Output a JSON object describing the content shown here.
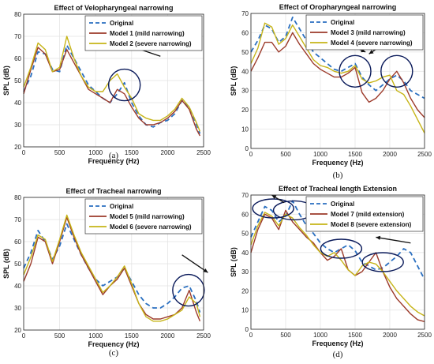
{
  "colors": {
    "original": "#2a6fc0",
    "moderate": "#9c3a2a",
    "severe": "#c6b417",
    "annotation": "#0a1a5a",
    "grid": "#e2e2e2"
  },
  "chart_data": [
    {
      "type": "line",
      "panel_label": "(a)",
      "title": "Effect of Velopharyngeal narrowing",
      "xlabel": "Frequency (Hz)",
      "ylabel": "SPL (dB)",
      "xlim": [
        0,
        2500
      ],
      "ylim": [
        20,
        80
      ],
      "xticks": [
        "0",
        "500",
        "1000",
        "1500",
        "2000",
        "2500"
      ],
      "yticks": [
        "20",
        "30",
        "40",
        "50",
        "60",
        "70",
        "80"
      ],
      "grid": true,
      "legend_position": "top-right",
      "annotations": [
        {
          "type": "circle",
          "cx": 1400,
          "cy": 48
        },
        {
          "type": "arrow",
          "direction": "left",
          "from": [
            1900,
            61
          ],
          "to": [
            1350,
            67
          ]
        }
      ],
      "series": [
        {
          "name": "Original",
          "style": "dashed",
          "x": [
            0,
            100,
            200,
            300,
            400,
            500,
            600,
            700,
            800,
            900,
            1000,
            1100,
            1200,
            1300,
            1400,
            1500,
            1600,
            1700,
            1800,
            1900,
            2000,
            2100,
            2200,
            2300,
            2400,
            2450
          ],
          "y": [
            45,
            52,
            63,
            62,
            55,
            54,
            66,
            60,
            54,
            48,
            45,
            42,
            40,
            44,
            49,
            40,
            34,
            30,
            29,
            31,
            32,
            35,
            41,
            38,
            30,
            26
          ]
        },
        {
          "name": "Model 1 (mild narrowing)",
          "style": "solid",
          "x": [
            0,
            100,
            200,
            300,
            400,
            500,
            600,
            700,
            800,
            900,
            1000,
            1100,
            1200,
            1300,
            1400,
            1500,
            1600,
            1700,
            1800,
            1900,
            2000,
            2100,
            2200,
            2300,
            2400,
            2450
          ],
          "y": [
            44,
            55,
            65,
            62,
            54,
            55,
            64,
            58,
            52,
            46,
            44,
            42,
            40,
            46,
            44,
            38,
            33,
            30,
            30,
            31,
            33,
            36,
            41,
            37,
            28,
            25
          ]
        },
        {
          "name": "Model 2 (severe narrowing)",
          "style": "solid",
          "x": [
            0,
            100,
            200,
            300,
            400,
            500,
            600,
            700,
            800,
            900,
            1000,
            1100,
            1200,
            1300,
            1400,
            1500,
            1600,
            1700,
            1800,
            1900,
            2000,
            2100,
            2200,
            2300,
            2400,
            2450
          ],
          "y": [
            47,
            56,
            67,
            64,
            54,
            56,
            70,
            60,
            52,
            47,
            45,
            45,
            50,
            53,
            47,
            42,
            35,
            33,
            32,
            32,
            34,
            37,
            42,
            38,
            31,
            27
          ]
        }
      ]
    },
    {
      "type": "line",
      "panel_label": "(b)",
      "title": "Effect of Oropharyngeal narrowing",
      "xlabel": "Frequency (Hz)",
      "ylabel": "SPL (dB)",
      "xlim": [
        0,
        2500
      ],
      "ylim": [
        0,
        70
      ],
      "xticks": [
        "0",
        "500",
        "1000",
        "1500",
        "2000",
        "2500"
      ],
      "yticks": [
        "0",
        "10",
        "20",
        "30",
        "40",
        "50",
        "60",
        "70"
      ],
      "grid": true,
      "legend_position": "top-right",
      "annotations": [
        {
          "type": "circle",
          "cx": 1500,
          "cy": 40
        },
        {
          "type": "circle",
          "cx": 2100,
          "cy": 40
        },
        {
          "type": "arrow",
          "direction": "down-right",
          "from": [
            1200,
            57
          ],
          "to": [
            1650,
            50
          ]
        },
        {
          "type": "arrow",
          "direction": "down-left",
          "from": [
            1950,
            55
          ],
          "to": [
            1700,
            49
          ]
        }
      ],
      "series": [
        {
          "name": "Original",
          "style": "dashed",
          "x": [
            0,
            100,
            200,
            300,
            400,
            500,
            600,
            700,
            800,
            900,
            1000,
            1100,
            1200,
            1300,
            1400,
            1500,
            1600,
            1700,
            1800,
            1900,
            2000,
            2100,
            2200,
            2300,
            2400,
            2500
          ],
          "y": [
            50,
            56,
            64,
            62,
            55,
            58,
            68,
            62,
            56,
            50,
            47,
            44,
            41,
            40,
            42,
            44,
            37,
            33,
            30,
            33,
            36,
            38,
            35,
            30,
            28,
            26
          ]
        },
        {
          "name": "Model 3 (mild narrowing)",
          "style": "solid",
          "x": [
            0,
            100,
            200,
            300,
            400,
            500,
            600,
            700,
            800,
            900,
            1000,
            1100,
            1200,
            1300,
            1400,
            1500,
            1600,
            1700,
            1800,
            1900,
            2000,
            2100,
            2200,
            2300,
            2400,
            2500
          ],
          "y": [
            40,
            47,
            55,
            55,
            50,
            53,
            60,
            54,
            49,
            44,
            41,
            39,
            37,
            37,
            39,
            42,
            29,
            24,
            26,
            30,
            36,
            40,
            34,
            26,
            20,
            16
          ]
        },
        {
          "name": "Model 4 (severe narrowing)",
          "style": "solid",
          "x": [
            0,
            100,
            200,
            300,
            400,
            500,
            600,
            700,
            800,
            900,
            1000,
            1100,
            1200,
            1300,
            1400,
            1500,
            1600,
            1700,
            1800,
            1900,
            2000,
            2100,
            2200,
            2300,
            2400,
            2500
          ],
          "y": [
            44,
            52,
            65,
            63,
            54,
            57,
            64,
            58,
            52,
            46,
            43,
            42,
            40,
            39,
            40,
            43,
            36,
            34,
            35,
            37,
            38,
            30,
            28,
            22,
            15,
            8
          ]
        }
      ]
    },
    {
      "type": "line",
      "panel_label": "(c)",
      "title": "Effect of Tracheal narrowing",
      "xlabel": "Frequency (Hz)",
      "ylabel": "SPL (dB)",
      "xlim": [
        0,
        2500
      ],
      "ylim": [
        20,
        80
      ],
      "xticks": [
        "0",
        "500",
        "1000",
        "1500",
        "2000",
        "2500"
      ],
      "yticks": [
        "20",
        "30",
        "40",
        "50",
        "60",
        "70",
        "80"
      ],
      "grid": true,
      "legend_position": "top-right",
      "annotations": [
        {
          "type": "circle",
          "cx": 2290,
          "cy": 38
        },
        {
          "type": "arrow",
          "direction": "down-right",
          "from": [
            2200,
            54
          ],
          "to": [
            2560,
            46
          ]
        }
      ],
      "series": [
        {
          "name": "Original",
          "style": "dashed",
          "x": [
            0,
            100,
            200,
            300,
            400,
            500,
            600,
            700,
            800,
            900,
            1000,
            1100,
            1200,
            1300,
            1400,
            1500,
            1600,
            1700,
            1800,
            1900,
            2000,
            2100,
            2200,
            2300,
            2400,
            2450
          ],
          "y": [
            48,
            55,
            65,
            60,
            52,
            58,
            68,
            61,
            54,
            48,
            43,
            40,
            42,
            44,
            48,
            42,
            36,
            32,
            30,
            30,
            32,
            35,
            39,
            40,
            33,
            28
          ]
        },
        {
          "name": "Model 5 (mild narrowing)",
          "style": "solid",
          "x": [
            0,
            100,
            200,
            300,
            400,
            500,
            600,
            700,
            800,
            900,
            1000,
            1100,
            1200,
            1300,
            1400,
            1500,
            1600,
            1700,
            1800,
            1900,
            2000,
            2100,
            2200,
            2300,
            2400,
            2450
          ],
          "y": [
            42,
            50,
            62,
            60,
            50,
            60,
            71,
            62,
            54,
            48,
            42,
            36,
            40,
            43,
            48,
            40,
            32,
            27,
            25,
            25,
            26,
            27,
            30,
            38,
            28,
            24
          ]
        },
        {
          "name": "Model 6 (severe narrowing)",
          "style": "solid",
          "x": [
            0,
            100,
            200,
            300,
            400,
            500,
            600,
            700,
            800,
            900,
            1000,
            1100,
            1200,
            1300,
            1400,
            1500,
            1600,
            1700,
            1800,
            1900,
            2000,
            2100,
            2200,
            2300,
            2400,
            2450
          ],
          "y": [
            45,
            53,
            63,
            61,
            51,
            61,
            72,
            63,
            55,
            49,
            43,
            37,
            40,
            44,
            49,
            41,
            32,
            26,
            24,
            24,
            25,
            27,
            29,
            35,
            32,
            26
          ]
        }
      ]
    },
    {
      "type": "line",
      "panel_label": "(d)",
      "title": "Effect of Tracheal length Extension",
      "xlabel": "Frequency (Hz)",
      "ylabel": "SPL (dB)",
      "xlim": [
        0,
        2500
      ],
      "ylim": [
        0,
        70
      ],
      "xticks": [
        "0",
        "500",
        "1000",
        "1500",
        "2000",
        "2500"
      ],
      "yticks": [
        "0",
        "10",
        "20",
        "30",
        "40",
        "50",
        "60",
        "70"
      ],
      "grid": true,
      "legend_position": "top-right",
      "annotations": [
        {
          "type": "ellipse",
          "cx": 320,
          "cy": 63
        },
        {
          "type": "ellipse",
          "cx": 620,
          "cy": 62
        },
        {
          "type": "ellipse",
          "cx": 1300,
          "cy": 42
        },
        {
          "type": "ellipse",
          "cx": 1900,
          "cy": 35
        },
        {
          "type": "arrow",
          "direction": "left",
          "from": [
            480,
            66
          ],
          "to": [
            300,
            70
          ]
        },
        {
          "type": "arrow",
          "direction": "left",
          "from": [
            1200,
            55
          ],
          "to": [
            1020,
            53
          ]
        },
        {
          "type": "arrow",
          "direction": "left",
          "from": [
            2300,
            45
          ],
          "to": [
            1800,
            48
          ]
        }
      ],
      "series": [
        {
          "name": "Original",
          "style": "dashed",
          "x": [
            0,
            100,
            200,
            300,
            400,
            500,
            600,
            700,
            800,
            900,
            1000,
            1100,
            1200,
            1300,
            1400,
            1500,
            1600,
            1700,
            1800,
            1900,
            2000,
            2100,
            2200,
            2300,
            2400,
            2500
          ],
          "y": [
            48,
            56,
            64,
            62,
            56,
            59,
            67,
            60,
            54,
            50,
            45,
            42,
            40,
            42,
            44,
            41,
            35,
            33,
            31,
            32,
            35,
            38,
            42,
            40,
            33,
            26
          ]
        },
        {
          "name": "Model 7 (mild extension)",
          "style": "solid",
          "x": [
            0,
            100,
            200,
            300,
            400,
            500,
            600,
            700,
            800,
            900,
            1000,
            1100,
            1200,
            1300,
            1400,
            1500,
            1600,
            1700,
            1800,
            1900,
            2000,
            2100,
            2200,
            2300,
            2400,
            2500
          ],
          "y": [
            40,
            52,
            60,
            58,
            52,
            62,
            56,
            52,
            48,
            45,
            40,
            36,
            38,
            42,
            31,
            28,
            30,
            35,
            40,
            30,
            22,
            16,
            12,
            8,
            5,
            4
          ]
        },
        {
          "name": "Model 8 (severe extension)",
          "style": "solid",
          "x": [
            0,
            100,
            200,
            300,
            400,
            500,
            600,
            700,
            800,
            900,
            1000,
            1100,
            1200,
            1300,
            1400,
            1500,
            1600,
            1700,
            1800,
            1900,
            2000,
            2100,
            2200,
            2300,
            2400,
            2500
          ],
          "y": [
            44,
            54,
            61,
            59,
            54,
            60,
            58,
            53,
            49,
            44,
            40,
            38,
            40,
            36,
            31,
            28,
            33,
            35,
            34,
            30,
            25,
            20,
            16,
            12,
            9,
            7
          ]
        }
      ]
    }
  ]
}
